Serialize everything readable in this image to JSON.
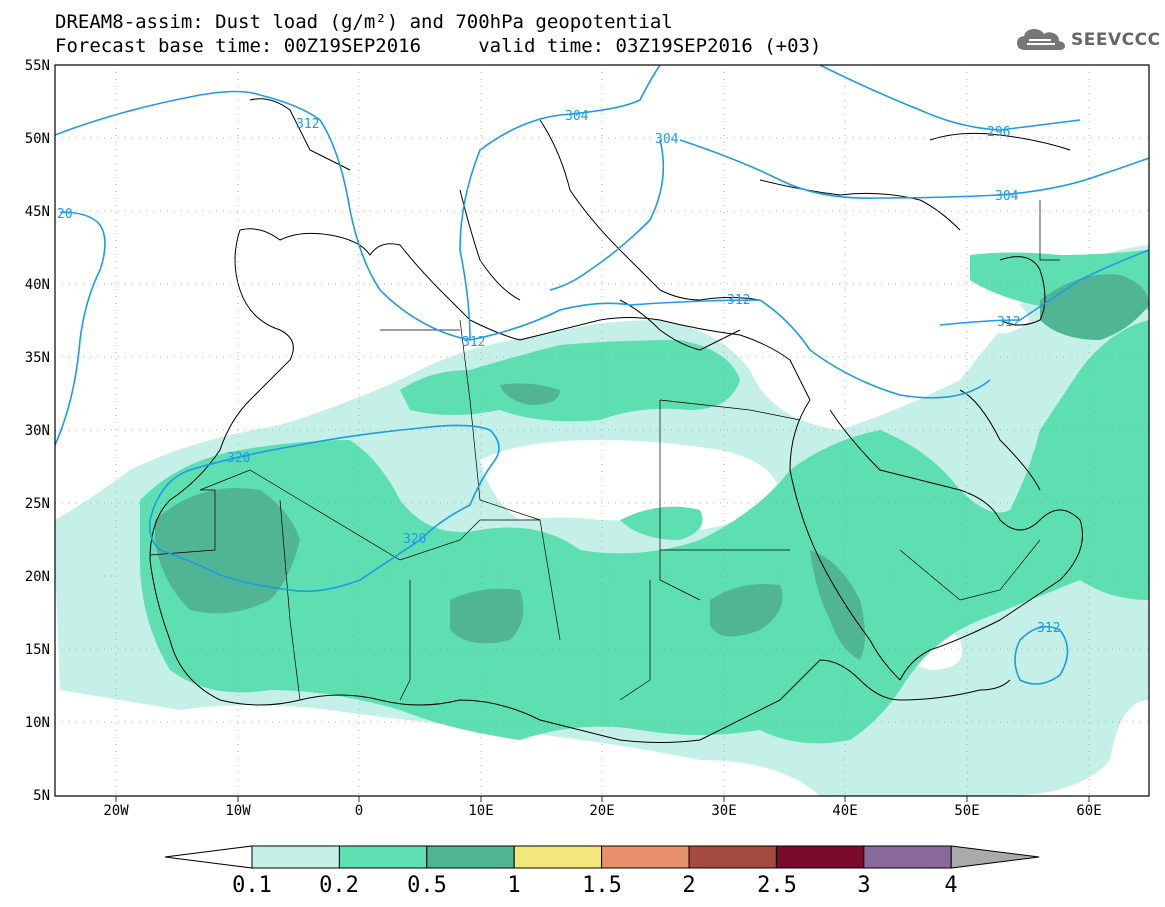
{
  "title": {
    "line1": "DREAM8-assim: Dust load (g/m²) and 700hPa geopotential",
    "line2": "Forecast base time: 00Z19SEP2016     valid time: 03Z19SEP2016 (+03)"
  },
  "logo": {
    "text": "SEEVCCC",
    "icon": "cloud-icon"
  },
  "map": {
    "lat_labels": [
      "55N",
      "50N",
      "45N",
      "40N",
      "35N",
      "30N",
      "25N",
      "20N",
      "15N",
      "10N",
      "5N"
    ],
    "lon_labels": [
      "20W",
      "10W",
      "0",
      "10E",
      "20E",
      "30E",
      "40E",
      "50E",
      "60E"
    ],
    "contours": [
      {
        "label": "304"
      },
      {
        "label": "304"
      },
      {
        "label": "296"
      },
      {
        "label": "304"
      },
      {
        "label": "312"
      },
      {
        "label": "312"
      },
      {
        "label": "312"
      },
      {
        "label": "312"
      },
      {
        "label": "320"
      },
      {
        "label": "320"
      },
      {
        "label": "312"
      },
      {
        "label": "20"
      }
    ],
    "contour_color": "#1e9be6",
    "coast_color": "#000000"
  },
  "legend": {
    "ticks": [
      "0.1",
      "0.2",
      "0.5",
      "1",
      "1.5",
      "2",
      "2.5",
      "3",
      "4"
    ],
    "colors": [
      "#c4f0e8",
      "#5ddfb2",
      "#4fb592",
      "#f2e77a",
      "#e8906a",
      "#a44a3e",
      "#7a0a2a",
      "#8a6a9e",
      "#aaaaaa"
    ]
  }
}
